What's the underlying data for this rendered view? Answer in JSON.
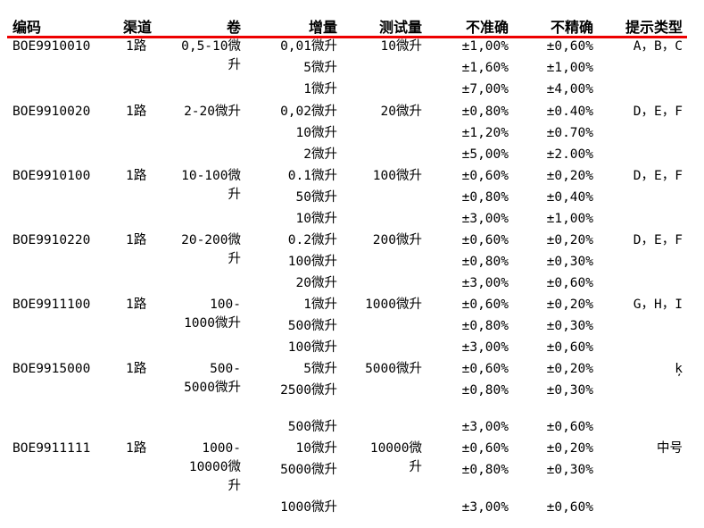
{
  "header": [
    "编码",
    "渠道",
    "卷",
    "增量",
    "测试量",
    "不准确",
    "不精确",
    "提示类型"
  ],
  "accent_color": "#ee0000",
  "groups": [
    {
      "code": "BOE9910010",
      "channel": "1路",
      "volume": [
        "0,5-10微",
        "升"
      ],
      "test": [
        "10微升"
      ],
      "hint": "A，B，C",
      "rows": [
        [
          "0,01微升",
          "±1,00%",
          "±0,60%"
        ],
        [
          "5微升",
          "±1,60%",
          "±1,00%"
        ],
        [
          "1微升",
          "±7,00%",
          "±4,00%"
        ]
      ]
    },
    {
      "code": "BOE9910020",
      "channel": "1路",
      "volume": [
        "2-20微升"
      ],
      "test": [
        "20微升"
      ],
      "hint": "D，E，F",
      "rows": [
        [
          "0,02微升",
          "±0,80%",
          "±0.40%"
        ],
        [
          "10微升",
          "±1,20%",
          "±0.70%"
        ],
        [
          "2微升",
          "±5,00%",
          "±2.00%"
        ]
      ]
    },
    {
      "code": "BOE9910100",
      "channel": "1路",
      "volume": [
        "10-100微",
        "升"
      ],
      "test": [
        "100微升"
      ],
      "hint": "D，E，F",
      "rows": [
        [
          "0.1微升",
          "±0,60%",
          "±0,20%"
        ],
        [
          "50微升",
          "±0,80%",
          "±0,40%"
        ],
        [
          "10微升",
          "±3,00%",
          "±1,00%"
        ]
      ]
    },
    {
      "code": "BOE9910220",
      "channel": "1路",
      "volume": [
        "20-200微",
        "升"
      ],
      "test": [
        "200微升"
      ],
      "hint": "D，E，F",
      "rows": [
        [
          "0.2微升",
          "±0,60%",
          "±0,20%"
        ],
        [
          "100微升",
          "±0,80%",
          "±0,30%"
        ],
        [
          "20微升",
          "±3,00%",
          "±0,60%"
        ]
      ]
    },
    {
      "code": "BOE9911100",
      "channel": "1路",
      "volume": [
        "100-",
        "1000微升"
      ],
      "test": [
        "1000微升"
      ],
      "hint": "G，H，I",
      "rows": [
        [
          "1微升",
          "±0,60%",
          "±0,20%"
        ],
        [
          "500微升",
          "±0,80%",
          "±0,30%"
        ],
        [
          "100微升",
          "±3,00%",
          "±0,60%"
        ]
      ]
    },
    {
      "code": "BOE9915000",
      "channel": "1路",
      "volume": [
        "500-",
        "5000微升"
      ],
      "test": [
        "5000微升"
      ],
      "hint": "ķ",
      "rows": [
        [
          "5微升",
          "±0,60%",
          "±0,20%"
        ],
        [
          "2500微升",
          "±0,80%",
          "±0,30%"
        ],
        [
          "500微升",
          "±3,00%",
          "±0,60%"
        ]
      ]
    },
    {
      "code": "BOE9911111",
      "channel": "1路",
      "volume": [
        "1000-",
        "10000微",
        "升"
      ],
      "test": [
        "10000微",
        "升"
      ],
      "hint": "中号",
      "rows": [
        [
          "10微升",
          "±0,60%",
          "±0,20%"
        ],
        [
          "5000微升",
          "±0,80%",
          "±0,30%"
        ],
        [
          "1000微升",
          "±3,00%",
          "±0,60%"
        ]
      ]
    }
  ]
}
